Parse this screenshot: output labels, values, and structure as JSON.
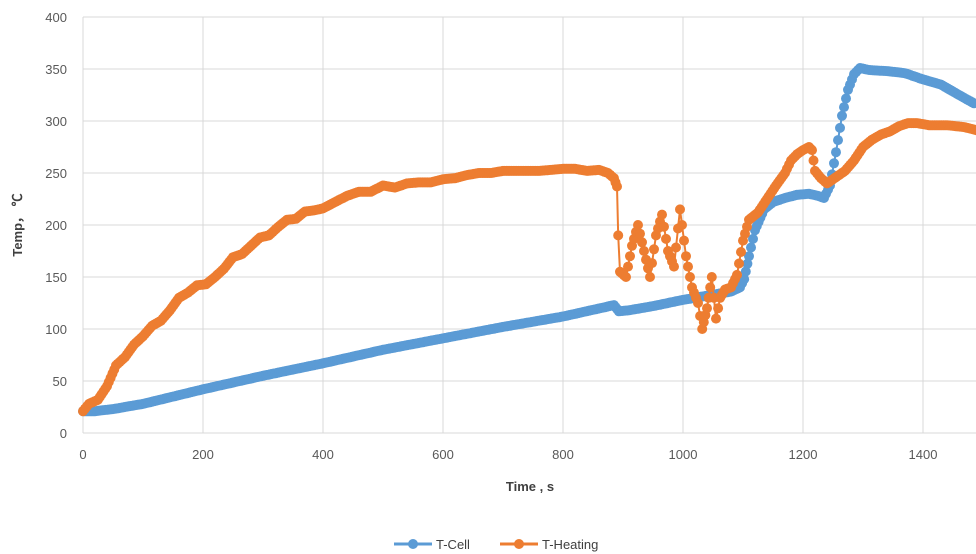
{
  "chart_data": {
    "type": "line",
    "xlabel": "Time , s",
    "ylabel": "Temp， ℃",
    "xlim": [
      0,
      1500
    ],
    "ylim": [
      0,
      400
    ],
    "x_ticks": [
      0,
      200,
      400,
      600,
      800,
      1000,
      1200,
      1400
    ],
    "y_ticks": [
      0,
      50,
      100,
      150,
      200,
      250,
      300,
      350,
      400
    ],
    "grid": true,
    "legend_position": "bottom",
    "series": [
      {
        "name": "T-Cell",
        "color": "#5B9BD5",
        "points": [
          [
            0,
            21
          ],
          [
            20,
            21
          ],
          [
            50,
            23
          ],
          [
            100,
            28
          ],
          [
            150,
            35
          ],
          [
            200,
            42
          ],
          [
            300,
            55
          ],
          [
            400,
            67
          ],
          [
            500,
            80
          ],
          [
            600,
            91
          ],
          [
            700,
            102
          ],
          [
            800,
            112
          ],
          [
            870,
            121
          ],
          [
            885,
            123
          ],
          [
            893,
            117
          ],
          [
            910,
            118
          ],
          [
            950,
            122
          ],
          [
            1000,
            128
          ],
          [
            1050,
            133
          ],
          [
            1080,
            136
          ],
          [
            1095,
            140
          ],
          [
            1102,
            148
          ],
          [
            1110,
            170
          ],
          [
            1120,
            195
          ],
          [
            1135,
            215
          ],
          [
            1150,
            222
          ],
          [
            1170,
            226
          ],
          [
            1190,
            229
          ],
          [
            1210,
            230
          ],
          [
            1225,
            228
          ],
          [
            1235,
            226
          ],
          [
            1245,
            238
          ],
          [
            1255,
            270
          ],
          [
            1265,
            305
          ],
          [
            1275,
            330
          ],
          [
            1285,
            345
          ],
          [
            1295,
            351
          ],
          [
            1310,
            349
          ],
          [
            1340,
            348
          ],
          [
            1370,
            346
          ],
          [
            1400,
            340
          ],
          [
            1430,
            335
          ],
          [
            1460,
            325
          ],
          [
            1485,
            317
          ]
        ]
      },
      {
        "name": "T-Heating",
        "color": "#ED7D31",
        "points": [
          [
            0,
            21
          ],
          [
            10,
            28
          ],
          [
            25,
            32
          ],
          [
            40,
            45
          ],
          [
            55,
            65
          ],
          [
            70,
            73
          ],
          [
            85,
            85
          ],
          [
            100,
            93
          ],
          [
            115,
            103
          ],
          [
            130,
            108
          ],
          [
            145,
            118
          ],
          [
            160,
            130
          ],
          [
            175,
            135
          ],
          [
            190,
            142
          ],
          [
            205,
            143
          ],
          [
            220,
            150
          ],
          [
            235,
            158
          ],
          [
            250,
            169
          ],
          [
            265,
            172
          ],
          [
            280,
            180
          ],
          [
            295,
            188
          ],
          [
            310,
            190
          ],
          [
            325,
            198
          ],
          [
            340,
            205
          ],
          [
            355,
            206
          ],
          [
            370,
            213
          ],
          [
            385,
            214
          ],
          [
            400,
            216
          ],
          [
            420,
            222
          ],
          [
            440,
            228
          ],
          [
            460,
            232
          ],
          [
            480,
            232
          ],
          [
            500,
            238
          ],
          [
            520,
            236
          ],
          [
            540,
            240
          ],
          [
            560,
            241
          ],
          [
            580,
            241
          ],
          [
            600,
            244
          ],
          [
            620,
            245
          ],
          [
            640,
            248
          ],
          [
            660,
            250
          ],
          [
            680,
            250
          ],
          [
            700,
            252
          ],
          [
            720,
            252
          ],
          [
            740,
            252
          ],
          [
            760,
            252
          ],
          [
            780,
            253
          ],
          [
            800,
            254
          ],
          [
            820,
            254
          ],
          [
            840,
            252
          ],
          [
            860,
            253
          ],
          [
            875,
            250
          ],
          [
            885,
            245
          ],
          [
            890,
            237
          ],
          [
            892,
            190
          ],
          [
            895,
            155
          ],
          [
            905,
            150
          ],
          [
            915,
            180
          ],
          [
            925,
            200
          ],
          [
            935,
            175
          ],
          [
            945,
            150
          ],
          [
            955,
            190
          ],
          [
            965,
            210
          ],
          [
            975,
            175
          ],
          [
            985,
            160
          ],
          [
            995,
            215
          ],
          [
            1005,
            170
          ],
          [
            1015,
            140
          ],
          [
            1025,
            125
          ],
          [
            1032,
            100
          ],
          [
            1040,
            120
          ],
          [
            1048,
            150
          ],
          [
            1055,
            110
          ],
          [
            1062,
            130
          ],
          [
            1070,
            138
          ],
          [
            1080,
            140
          ],
          [
            1090,
            152
          ],
          [
            1100,
            185
          ],
          [
            1110,
            205
          ],
          [
            1125,
            212
          ],
          [
            1140,
            225
          ],
          [
            1155,
            238
          ],
          [
            1170,
            250
          ],
          [
            1180,
            262
          ],
          [
            1190,
            268
          ],
          [
            1200,
            272
          ],
          [
            1210,
            275
          ],
          [
            1215,
            272
          ],
          [
            1220,
            252
          ],
          [
            1230,
            245
          ],
          [
            1240,
            240
          ],
          [
            1255,
            246
          ],
          [
            1270,
            252
          ],
          [
            1285,
            262
          ],
          [
            1300,
            275
          ],
          [
            1315,
            282
          ],
          [
            1330,
            287
          ],
          [
            1345,
            290
          ],
          [
            1360,
            295
          ],
          [
            1375,
            298
          ],
          [
            1390,
            298
          ],
          [
            1410,
            296
          ],
          [
            1440,
            296
          ],
          [
            1470,
            294
          ],
          [
            1490,
            291
          ]
        ]
      }
    ]
  }
}
